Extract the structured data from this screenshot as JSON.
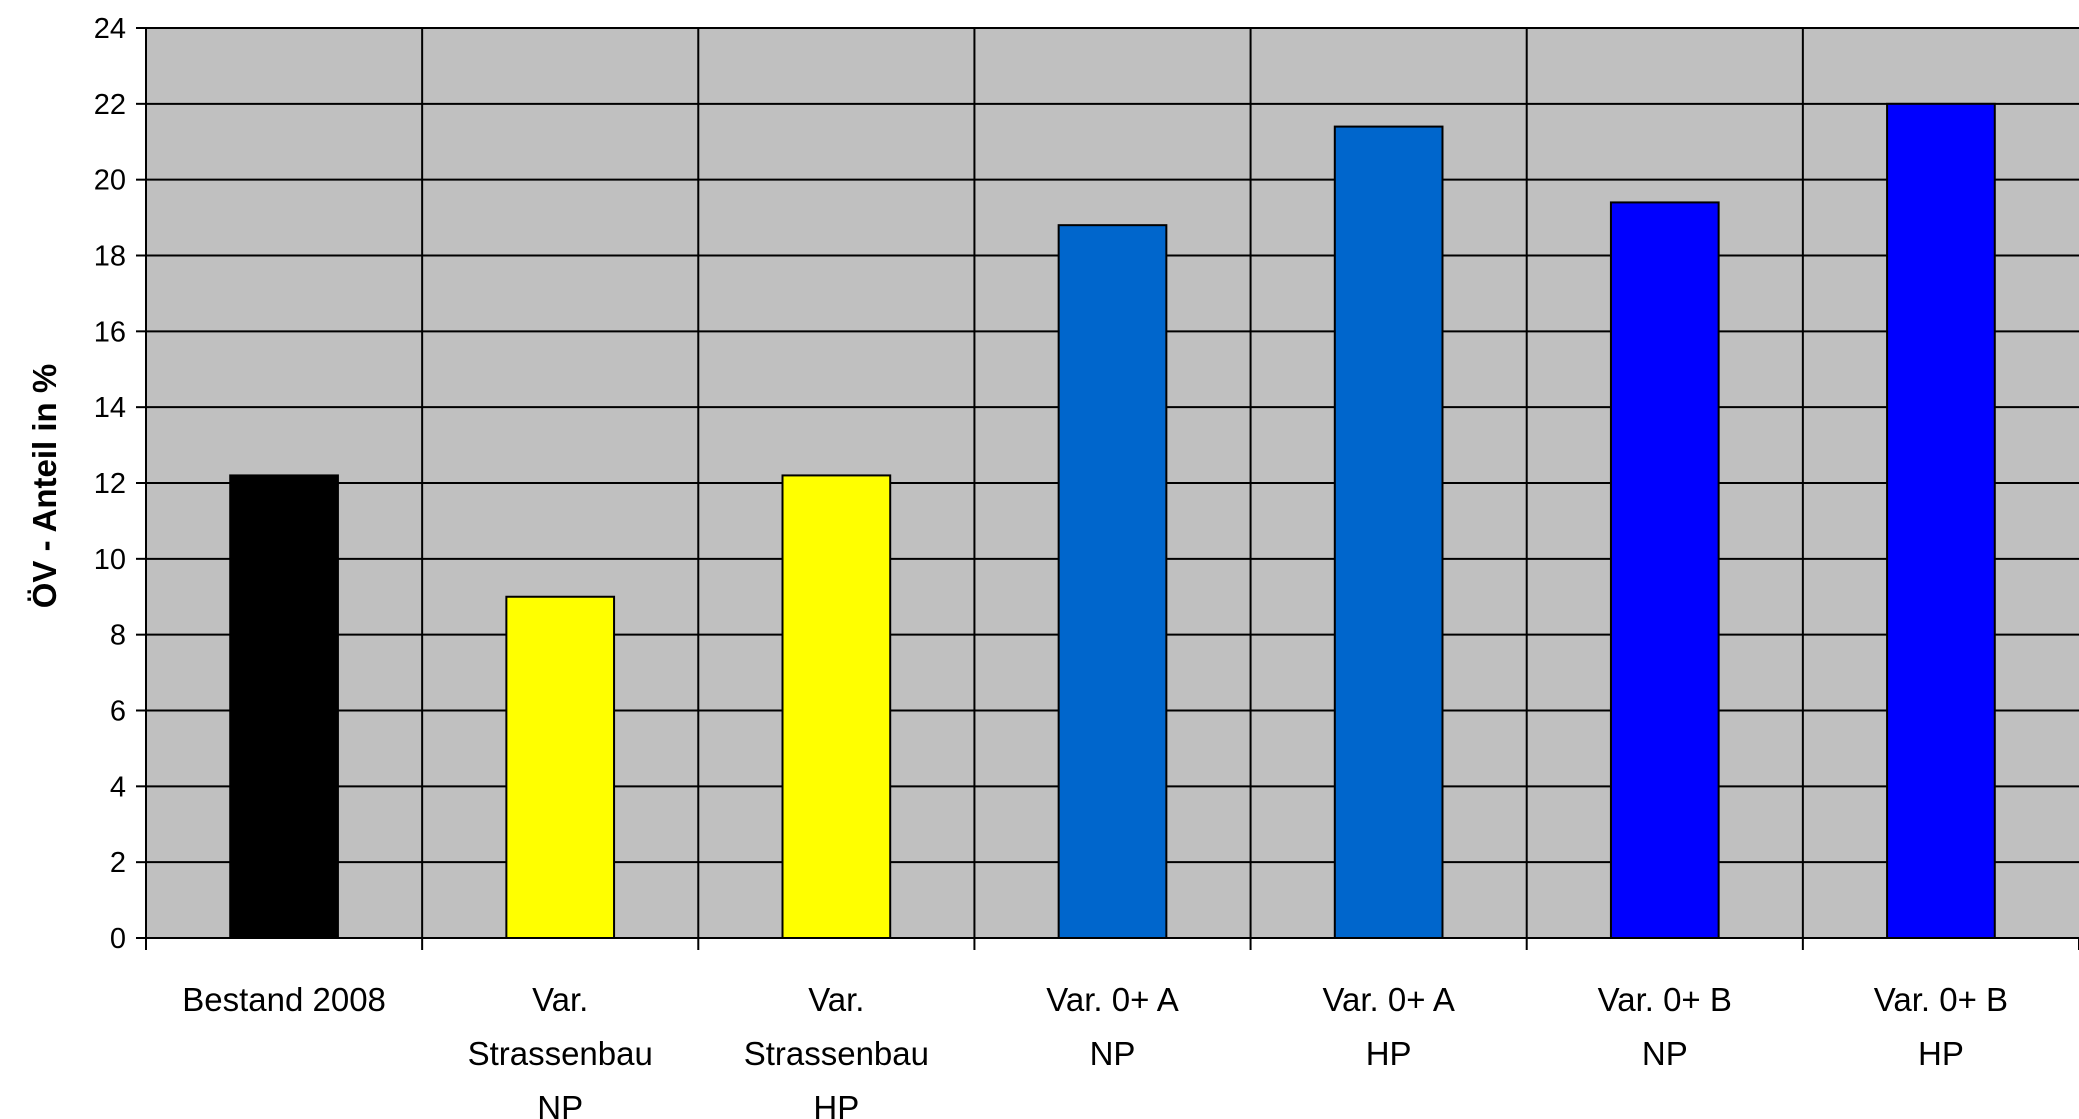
{
  "chart_data": {
    "type": "bar",
    "title": "",
    "xlabel": "",
    "ylabel": "ÖV - Anteil in %",
    "ylim": [
      0,
      24
    ],
    "y_ticks": [
      "0",
      "2",
      "4",
      "6",
      "8",
      "10",
      "12",
      "14",
      "16",
      "18",
      "20",
      "22",
      "24"
    ],
    "grid": true,
    "legend": "none",
    "plot_background": "#c0c0c0",
    "categories": [
      [
        "Bestand 2008"
      ],
      [
        "Var.",
        "Strassenbau",
        "NP"
      ],
      [
        "Var.",
        "Strassenbau",
        "HP"
      ],
      [
        "Var. 0+ A",
        "NP"
      ],
      [
        "Var. 0+ A",
        "HP"
      ],
      [
        "Var. 0+ B",
        "NP"
      ],
      [
        "Var. 0+ B",
        "HP"
      ]
    ],
    "values": [
      12.2,
      9.0,
      12.2,
      18.8,
      21.4,
      19.4,
      22.0
    ],
    "colors": [
      "#000000",
      "#ffff00",
      "#ffff00",
      "#0066cc",
      "#0066cc",
      "#0000ff",
      "#0000ff"
    ]
  }
}
